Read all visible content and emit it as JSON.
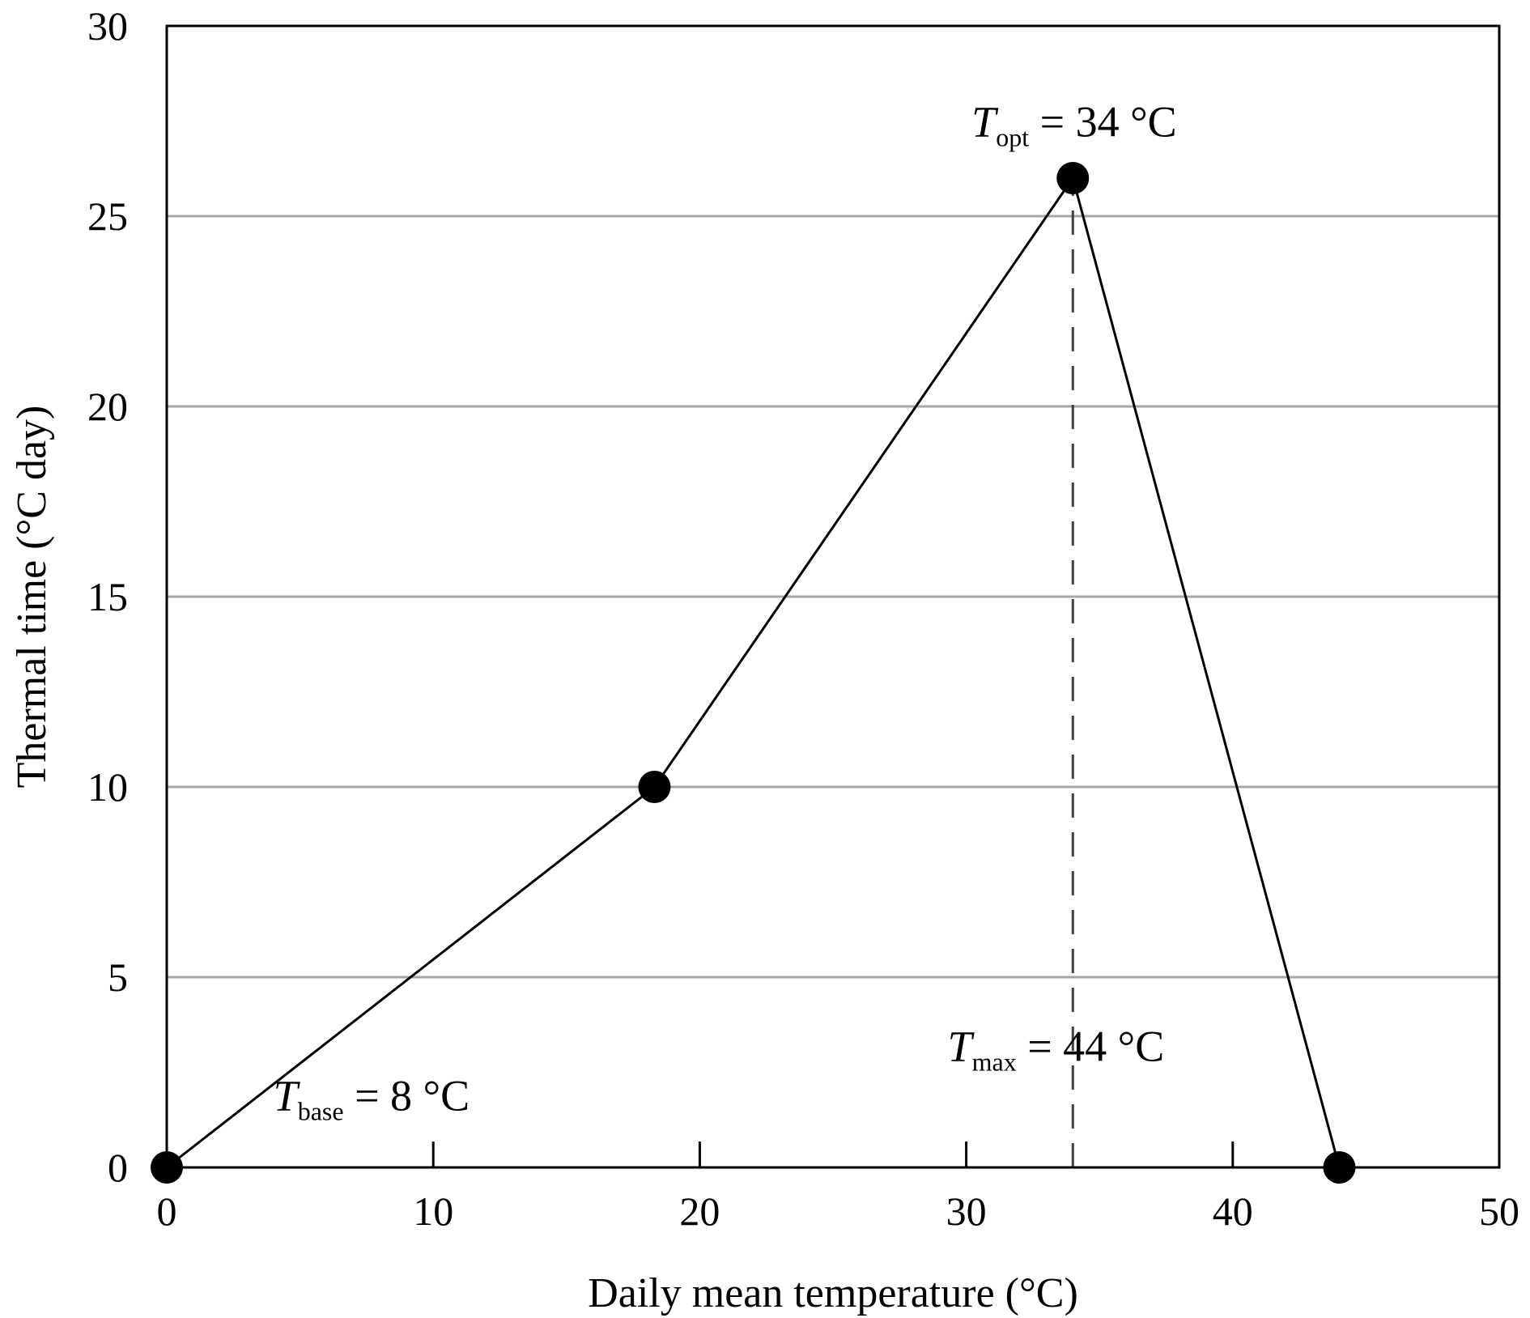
{
  "chart_data": {
    "type": "line",
    "xlabel": "Daily mean temperature (°C)",
    "ylabel": "Thermal time (°C day)",
    "xlim": [
      0,
      50
    ],
    "ylim": [
      0,
      30
    ],
    "x_ticks": [
      0,
      10,
      20,
      30,
      40,
      50
    ],
    "y_ticks": [
      0,
      5,
      10,
      15,
      20,
      25,
      30
    ],
    "grid": "horizontal",
    "series": [
      {
        "points": [
          {
            "x": 0,
            "y": 0
          },
          {
            "x": 18.3,
            "y": 10
          },
          {
            "x": 34,
            "y": 26
          },
          {
            "x": 44,
            "y": 0
          }
        ],
        "color": "#000000",
        "markers": true
      }
    ],
    "reference_lines": [
      {
        "orientation": "vertical",
        "x": 34,
        "y_from": 0,
        "y_to": 26,
        "style": "dashed",
        "color": "#404040"
      }
    ],
    "annotations": [
      {
        "id": "tbase",
        "symbol": "T",
        "subscript": "base",
        "text": " = 8 °C",
        "x": 4,
        "y": 1.5
      },
      {
        "id": "topt",
        "symbol": "T",
        "subscript": "opt",
        "text": " = 34 °C",
        "x": 30.2,
        "y": 27.1
      },
      {
        "id": "tmax",
        "symbol": "T",
        "subscript": "max",
        "text": " = 44 °C",
        "x": 29.3,
        "y": 2.8
      }
    ],
    "gridline_color": "#a6a6a6"
  }
}
